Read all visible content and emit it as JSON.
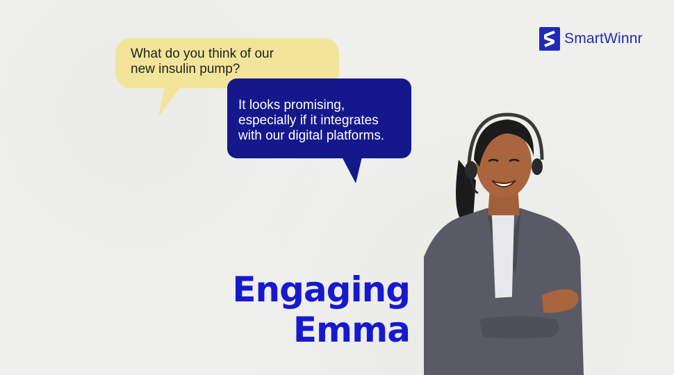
{
  "brand": {
    "name": "SmartWinnr",
    "color": "#1f2ab8",
    "icon": "s-logo-icon"
  },
  "conversation": {
    "question": "What do you think of our\nnew insulin pump?",
    "question_color": "#f2e59a",
    "answer": "It looks promising,\nespecially if it integrates\nwith our digital platforms.",
    "answer_color": "#14188c"
  },
  "title": {
    "line1": "Engaging",
    "line2": "Emma",
    "color": "#1719cf"
  },
  "character": {
    "icon": "headset-woman-illustration"
  }
}
